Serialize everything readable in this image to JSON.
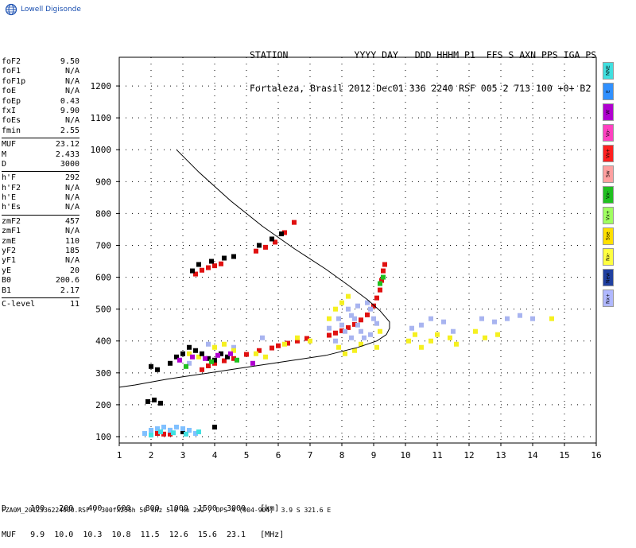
{
  "header": {
    "brand": "Lowell Digisonde",
    "station_line1": "STATION            YYYY DAY   DDD HHHM P1  FFS S AXN PPS IGA PS",
    "station_line2": "Fortaleza, Brasil 2012 Dec01 336 2240 RSF 005 2 713 100 +0+ B2"
  },
  "params": [
    {
      "label": "foF2",
      "value": "9.50"
    },
    {
      "label": "foF1",
      "value": "N/A"
    },
    {
      "label": "foF1p",
      "value": "N/A"
    },
    {
      "label": "foE",
      "value": "N/A"
    },
    {
      "label": "foEp",
      "value": "0.43"
    },
    {
      "label": "fxI",
      "value": "9.90"
    },
    {
      "label": "foEs",
      "value": "N/A"
    },
    {
      "label": "fmin",
      "value": "2.55"
    },
    {
      "sep": true
    },
    {
      "label": "MUF",
      "value": "23.12"
    },
    {
      "label": "M",
      "value": "2.433"
    },
    {
      "label": "D",
      "value": "3000"
    },
    {
      "sep": true
    },
    {
      "label": "h'F",
      "value": "292"
    },
    {
      "label": "h'F2",
      "value": "N/A"
    },
    {
      "label": "h'E",
      "value": "N/A"
    },
    {
      "label": "h'Es",
      "value": "N/A"
    },
    {
      "sep": true
    },
    {
      "label": "zmF2",
      "value": "457"
    },
    {
      "label": "zmF1",
      "value": "N/A"
    },
    {
      "label": "zmE",
      "value": "110"
    },
    {
      "label": "yF2",
      "value": "185"
    },
    {
      "label": "yF1",
      "value": "N/A"
    },
    {
      "label": "yE",
      "value": "20"
    },
    {
      "label": "B0",
      "value": "200.6"
    },
    {
      "label": "B1",
      "value": "2.17"
    },
    {
      "sep": true
    },
    {
      "label": "C-level",
      "value": "11"
    }
  ],
  "mode_legend": [
    {
      "label": "NNE",
      "color": "#40e0e0"
    },
    {
      "label": "E",
      "color": "#3090ff"
    },
    {
      "label": "W",
      "color": "#b000d0"
    },
    {
      "label": "Vo-",
      "color": "#ff40c0"
    },
    {
      "label": "Vo+",
      "color": "#ff2020"
    },
    {
      "label": "Sw",
      "color": "#ffa0a0"
    },
    {
      "label": "Vx-",
      "color": "#20c020"
    },
    {
      "label": "Vx+",
      "color": "#a0ff60"
    },
    {
      "label": "Sse",
      "color": "#ffe000"
    },
    {
      "label": "Nx-",
      "color": "#ffff40"
    },
    {
      "label": "New",
      "color": "#2040a0"
    },
    {
      "label": "Nx+",
      "color": "#b0b8ff"
    }
  ],
  "muf_table": {
    "line1": "D     100   200   400   600   800  1000  1500  3000   [km]",
    "line2": "MUF   9.9  10.0  10.3  10.8  11.5  12.6  15.6  23.1   [MHz]"
  },
  "footer": "FZA0M_2012336224000.RSF / 300fx256h 50 kHz 5.0 km 2x2 / DPS-4 (904-904)  3.9 S 321.6 E",
  "chart_data": {
    "type": "scatter",
    "x_ticks": [
      "1",
      "2",
      "3",
      "4",
      "5",
      "6",
      "7",
      "8",
      "9",
      "10",
      "11",
      "12",
      "13",
      "14",
      "15",
      "16"
    ],
    "y_ticks": [
      "100",
      "200",
      "300",
      "400",
      "500",
      "600",
      "700",
      "800",
      "900",
      "1000",
      "1100",
      "1200"
    ],
    "xlim": [
      1,
      16
    ],
    "ylim": [
      80,
      1290
    ],
    "grid": true,
    "profile_curve": [
      [
        2.8,
        1000
      ],
      [
        3.5,
        930
      ],
      [
        4.5,
        840
      ],
      [
        5.5,
        760
      ],
      [
        6.5,
        690
      ],
      [
        7.5,
        625
      ],
      [
        8.2,
        575
      ],
      [
        8.8,
        530
      ],
      [
        9.2,
        495
      ],
      [
        9.5,
        460
      ],
      [
        9.5,
        440
      ],
      [
        9.4,
        420
      ],
      [
        9.1,
        400
      ],
      [
        8.5,
        380
      ],
      [
        7.5,
        355
      ],
      [
        6.5,
        340
      ],
      [
        5.5,
        325
      ],
      [
        4.5,
        310
      ],
      [
        3.5,
        295
      ],
      [
        2.5,
        280
      ],
      [
        1.5,
        262
      ],
      [
        1,
        255
      ]
    ],
    "series": [
      {
        "name": "Vo+",
        "color": "#e01010",
        "points": [
          [
            3.4,
            610
          ],
          [
            3.6,
            622
          ],
          [
            3.8,
            630
          ],
          [
            4.0,
            636
          ],
          [
            4.2,
            642
          ],
          [
            5.3,
            682
          ],
          [
            5.6,
            694
          ],
          [
            5.9,
            710
          ],
          [
            6.2,
            740
          ],
          [
            6.5,
            772
          ],
          [
            2.2,
            110
          ],
          [
            2.4,
            108
          ],
          [
            2.6,
            108
          ],
          [
            3.6,
            310
          ],
          [
            3.8,
            322
          ],
          [
            4.0,
            330
          ],
          [
            4.3,
            338
          ],
          [
            4.6,
            345
          ],
          [
            5.0,
            358
          ],
          [
            5.4,
            370
          ],
          [
            5.8,
            378
          ],
          [
            6.0,
            385
          ],
          [
            6.3,
            393
          ],
          [
            6.6,
            400
          ],
          [
            6.9,
            408
          ],
          [
            7.6,
            418
          ],
          [
            7.8,
            425
          ],
          [
            8.0,
            432
          ],
          [
            8.2,
            442
          ],
          [
            8.4,
            452
          ],
          [
            8.6,
            466
          ],
          [
            8.8,
            482
          ],
          [
            9.0,
            510
          ],
          [
            9.1,
            535
          ],
          [
            9.2,
            560
          ],
          [
            9.25,
            590
          ],
          [
            9.3,
            620
          ],
          [
            9.35,
            640
          ]
        ]
      },
      {
        "name": "Nx+",
        "color": "#a8b4f0",
        "points": [
          [
            7.9,
            470
          ],
          [
            8.0,
            450
          ],
          [
            8.1,
            430
          ],
          [
            8.3,
            410
          ],
          [
            8.4,
            470
          ],
          [
            8.5,
            450
          ],
          [
            8.6,
            430
          ],
          [
            8.7,
            410
          ],
          [
            8.8,
            520
          ],
          [
            8.9,
            500
          ],
          [
            9.0,
            470
          ],
          [
            9.1,
            455
          ],
          [
            8.2,
            500
          ],
          [
            8.5,
            510
          ],
          [
            7.6,
            440
          ],
          [
            7.8,
            400
          ],
          [
            8.9,
            420
          ],
          [
            8.3,
            480
          ],
          [
            10.2,
            440
          ],
          [
            10.5,
            450
          ],
          [
            10.8,
            470
          ],
          [
            11.2,
            460
          ],
          [
            11.5,
            430
          ],
          [
            12.4,
            470
          ],
          [
            12.8,
            460
          ],
          [
            13.2,
            470
          ],
          [
            13.6,
            480
          ],
          [
            14.0,
            470
          ],
          [
            3.2,
            330
          ],
          [
            3.8,
            390
          ],
          [
            4.6,
            380
          ],
          [
            5.5,
            410
          ]
        ]
      },
      {
        "name": "Nx-",
        "color": "#f5f020",
        "points": [
          [
            7.6,
            470
          ],
          [
            7.8,
            500
          ],
          [
            8.0,
            520
          ],
          [
            8.2,
            540
          ],
          [
            7.9,
            380
          ],
          [
            8.1,
            360
          ],
          [
            8.4,
            370
          ],
          [
            8.6,
            390
          ],
          [
            9.1,
            380
          ],
          [
            9.2,
            430
          ],
          [
            10.1,
            400
          ],
          [
            10.3,
            420
          ],
          [
            10.5,
            380
          ],
          [
            10.8,
            400
          ],
          [
            11.0,
            420
          ],
          [
            11.4,
            410
          ],
          [
            11.6,
            390
          ],
          [
            12.2,
            430
          ],
          [
            12.5,
            410
          ],
          [
            12.9,
            420
          ],
          [
            14.6,
            470
          ],
          [
            3.2,
            360
          ],
          [
            3.5,
            350
          ],
          [
            4.0,
            380
          ],
          [
            4.3,
            390
          ],
          [
            4.6,
            370
          ],
          [
            5.3,
            360
          ],
          [
            5.6,
            350
          ],
          [
            6.2,
            390
          ],
          [
            6.6,
            410
          ],
          [
            7.0,
            400
          ]
        ]
      },
      {
        "name": "Nx-",
        "color": "#000000",
        "points": [
          [
            3.3,
            620
          ],
          [
            3.5,
            640
          ],
          [
            3.9,
            650
          ],
          [
            4.3,
            660
          ],
          [
            4.6,
            665
          ],
          [
            5.4,
            700
          ],
          [
            5.8,
            720
          ],
          [
            6.1,
            736
          ],
          [
            2.0,
            320
          ],
          [
            2.2,
            310
          ],
          [
            2.6,
            330
          ],
          [
            2.8,
            350
          ],
          [
            3.0,
            360
          ],
          [
            3.2,
            380
          ],
          [
            3.4,
            370
          ],
          [
            3.6,
            360
          ],
          [
            3.8,
            345
          ],
          [
            4.0,
            340
          ],
          [
            4.2,
            360
          ],
          [
            4.4,
            350
          ],
          [
            1.9,
            210
          ],
          [
            2.1,
            215
          ],
          [
            2.3,
            205
          ],
          [
            4.0,
            130
          ],
          [
            3.0,
            115
          ],
          [
            2.6,
            120
          ]
        ]
      },
      {
        "name": "Vx+",
        "color": "#80c0ff",
        "points": [
          [
            1.8,
            110
          ],
          [
            2.0,
            120
          ],
          [
            2.2,
            125
          ],
          [
            2.4,
            130
          ],
          [
            2.6,
            120
          ],
          [
            2.8,
            130
          ],
          [
            3.0,
            125
          ],
          [
            3.2,
            120
          ],
          [
            3.4,
            110
          ]
        ]
      },
      {
        "name": "New",
        "color": "#40e0e0",
        "points": [
          [
            2.0,
            105
          ],
          [
            2.3,
            115
          ],
          [
            2.7,
            112
          ],
          [
            3.1,
            108
          ],
          [
            3.5,
            115
          ]
        ]
      },
      {
        "name": "W",
        "color": "#b000d0",
        "points": [
          [
            2.9,
            340
          ],
          [
            3.3,
            350
          ],
          [
            3.7,
            345
          ],
          [
            4.1,
            355
          ],
          [
            4.5,
            360
          ],
          [
            5.2,
            330
          ]
        ]
      },
      {
        "name": "Vx-",
        "color": "#20c020",
        "points": [
          [
            3.1,
            320
          ],
          [
            3.9,
            335
          ],
          [
            4.7,
            340
          ],
          [
            9.2,
            580
          ],
          [
            9.3,
            600
          ]
        ]
      }
    ]
  }
}
